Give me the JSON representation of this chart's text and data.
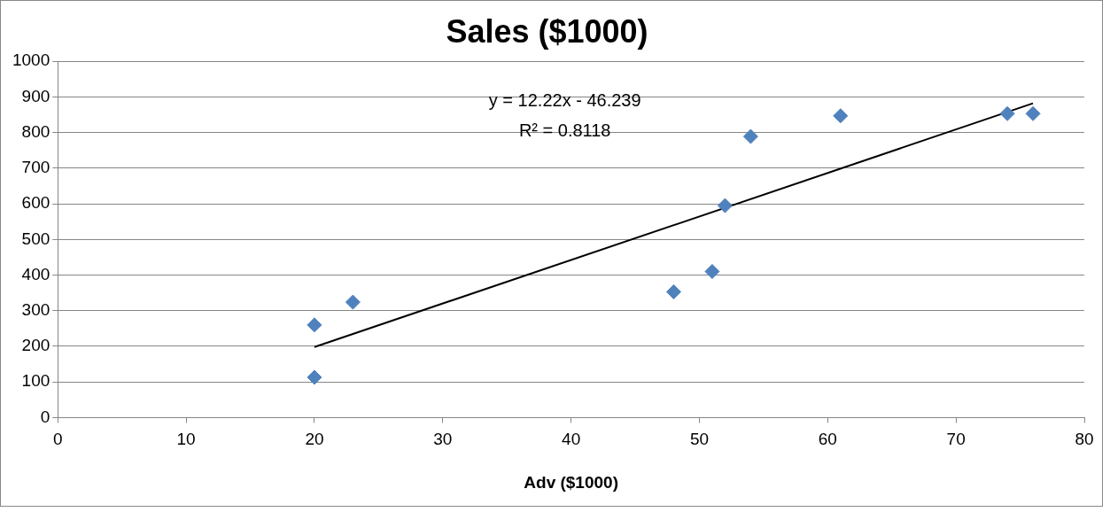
{
  "chart_data": {
    "type": "scatter",
    "title": "Sales ($1000)",
    "xlabel": "Adv ($1000)",
    "xlim": [
      0,
      80
    ],
    "xticks": [
      0,
      10,
      20,
      30,
      40,
      50,
      60,
      70,
      80
    ],
    "ylim": [
      0,
      1000
    ],
    "yticks": [
      0,
      100,
      200,
      300,
      400,
      500,
      600,
      700,
      800,
      900,
      1000
    ],
    "grid": "y",
    "legend": false,
    "annotations": [
      "y = 12.22x - 46.239",
      "R² = 0.8118"
    ],
    "series": [
      {
        "color": "#4f81bd",
        "marker": "diamond",
        "x": [
          20,
          20,
          23,
          48,
          51,
          52,
          54,
          61,
          74,
          76
        ],
        "values": [
          113,
          260,
          324,
          353,
          410,
          595,
          789,
          847,
          853,
          853
        ]
      },
      {
        "type": "line",
        "color": "#000000",
        "marker": "none",
        "line_style": "solid",
        "x": [
          20,
          76
        ],
        "values": [
          198,
          882
        ]
      }
    ]
  }
}
